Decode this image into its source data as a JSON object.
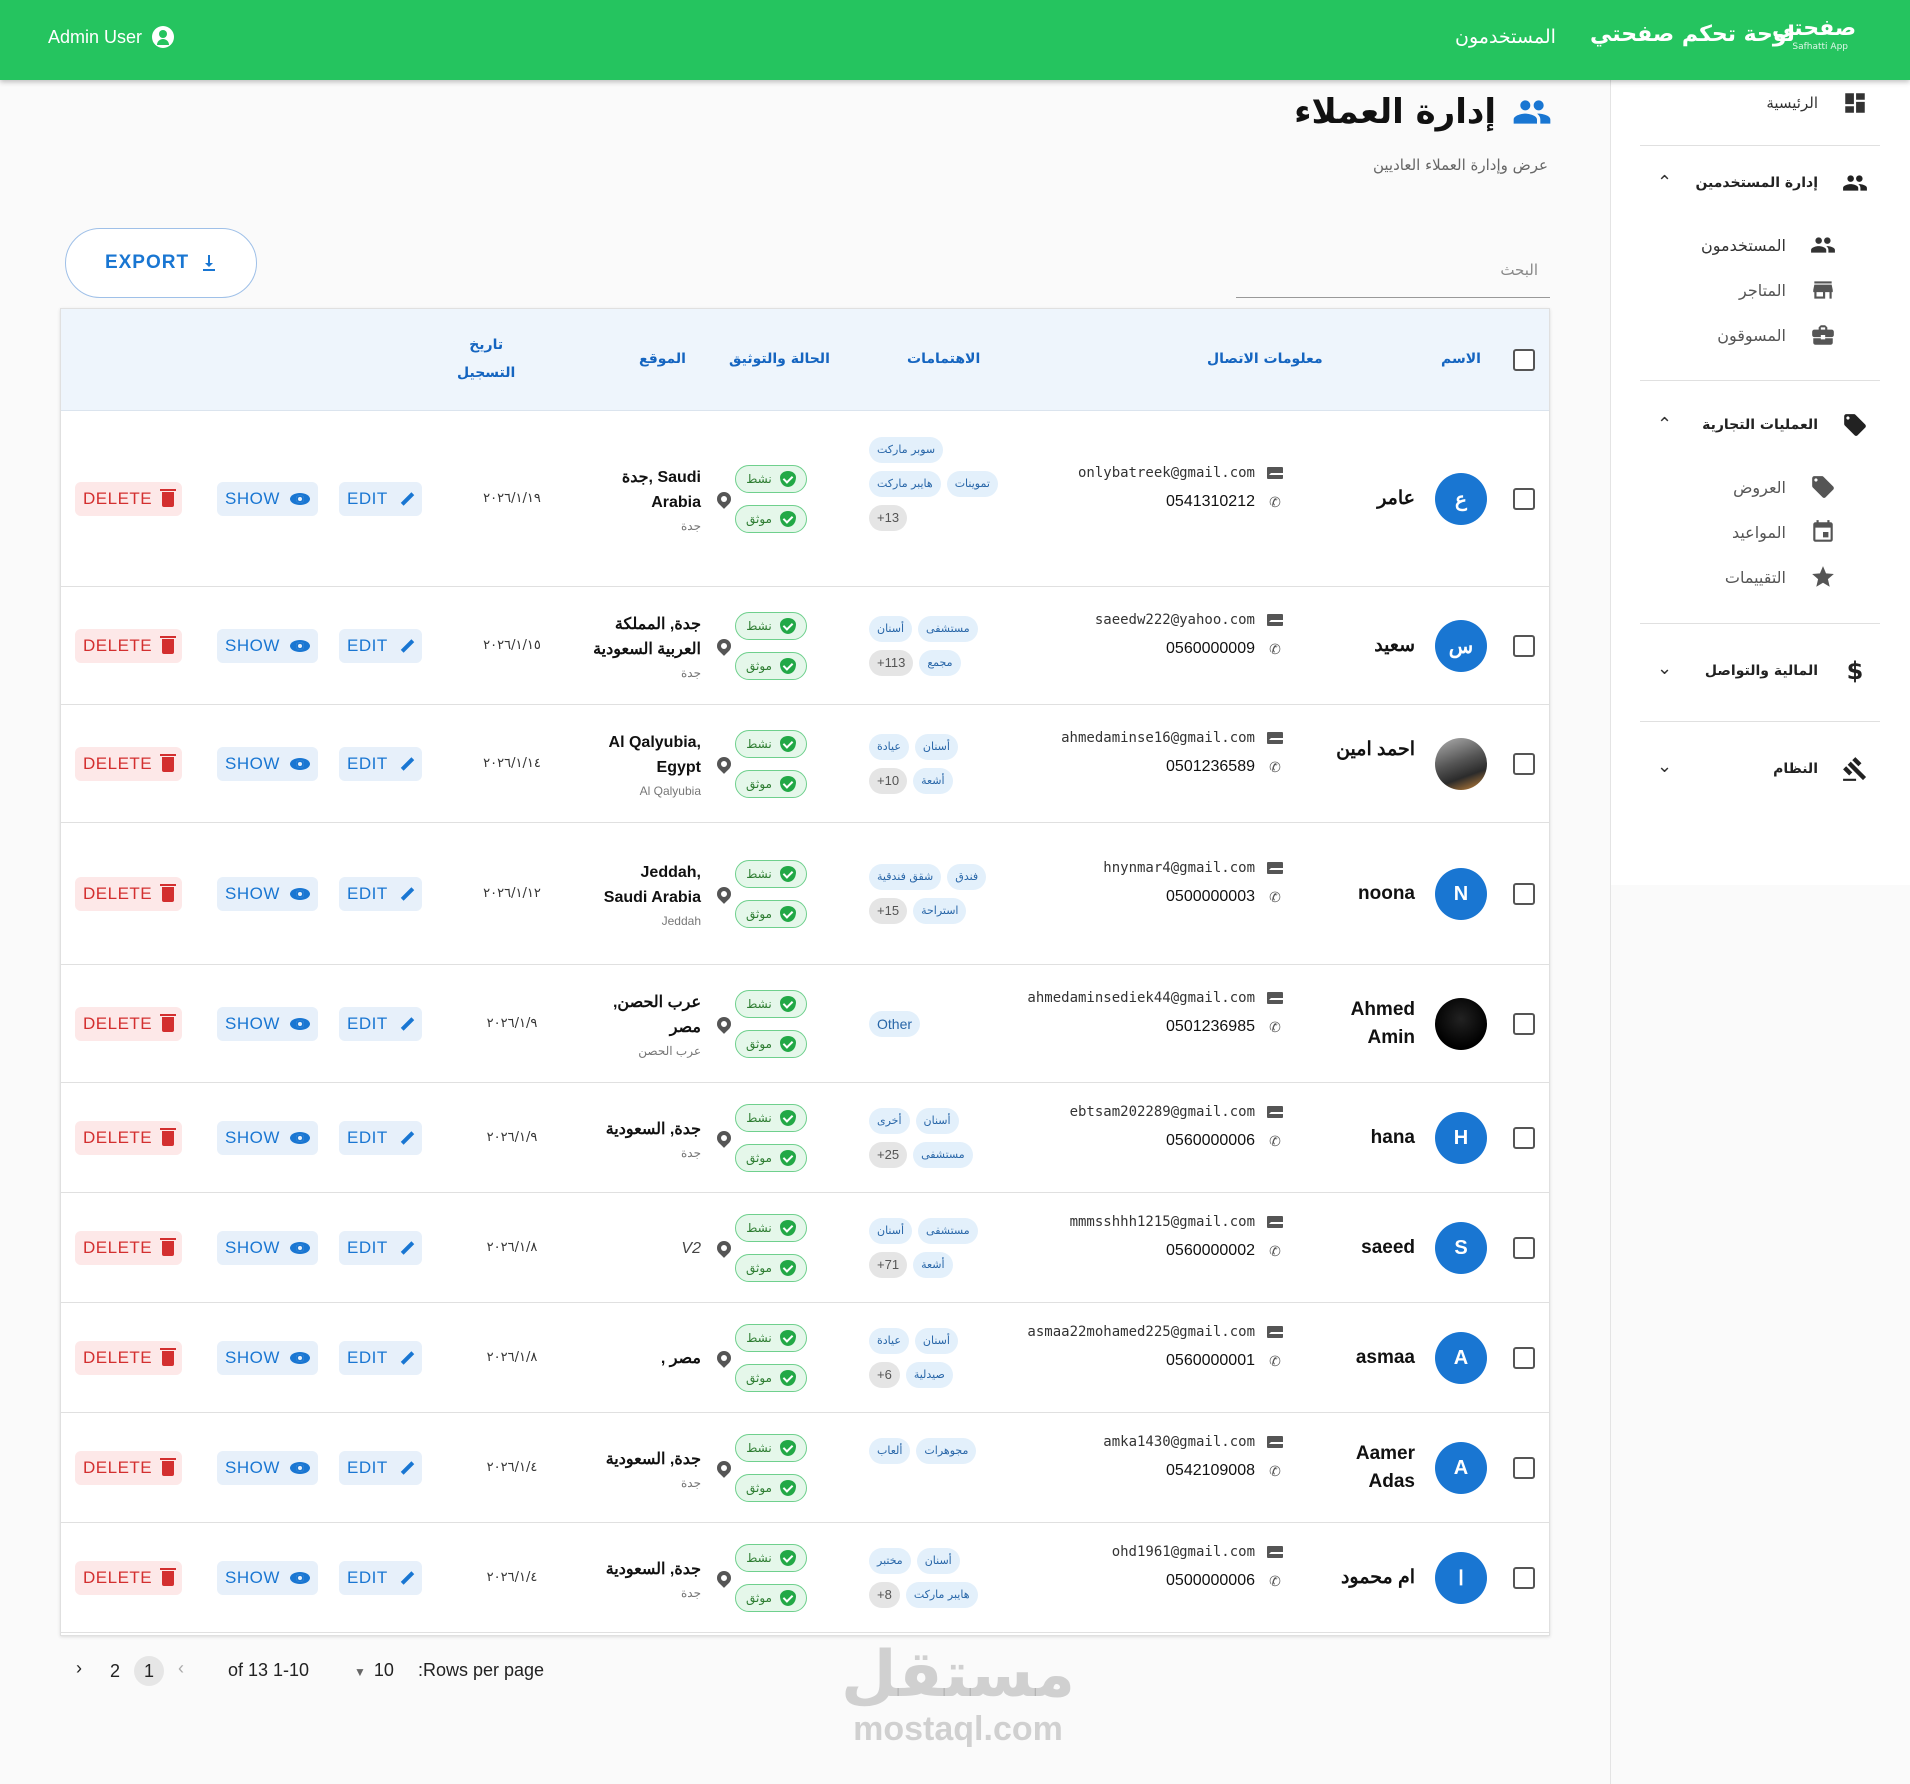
{
  "topbar": {
    "user": "Admin User",
    "nav_users": "المستخدمون",
    "dashboard_title": "لوحة تحكم صفحتي",
    "logo_ar": "صفحتي",
    "logo_en": "Safhatti App"
  },
  "sidebar": {
    "home": "الرئيسية",
    "users_group": "إدارة المستخدمين",
    "users_items": [
      "المستخدمون",
      "المتاجر",
      "المسوقون"
    ],
    "business_group": "العمليات التجارية",
    "business_items": [
      "العروض",
      "المواعيد",
      "التقييمات"
    ],
    "finance_group": "المالية والتواصل",
    "system_group": "النظام"
  },
  "header": {
    "title": "إدارة العملاء",
    "subtitle": "عرض وإدارة العملاء العاديين"
  },
  "toolbar": {
    "export_label": "EXPORT",
    "search_placeholder": "البحث"
  },
  "table": {
    "columns": {
      "name": "الاسم",
      "contact": "معلومات الاتصال",
      "interests": "الاهتمامات",
      "status": "الحالة والتوثيق",
      "location": "الموقع",
      "date_line1": "تاريخ",
      "date_line2": "التسجيل"
    },
    "status_active": "نشط",
    "status_verified": "موثق",
    "edit_label": "EDIT",
    "show_label": "SHOW",
    "delete_label": "DELETE",
    "rows": [
      {
        "avatar": "ع",
        "name": "عامر",
        "email": "onlybatreek@gmail.com",
        "phone": "0541310212",
        "interests": [
          "سوبر ماركت",
          "تموينات",
          "هايبر ماركت"
        ],
        "more": "13+",
        "loc_main": "جدة, Saudi Arabia",
        "loc_sub": "جدة",
        "date": "٢٠٢٦/١/١٩"
      },
      {
        "avatar": "س",
        "name": "سعيد",
        "email": "saeedw222@yahoo.com",
        "phone": "0560000009",
        "interests": [
          "مستشفى",
          "أسنان",
          "مجمع"
        ],
        "more": "113+",
        "loc_main": "جدة, المملكة العربية السعودية",
        "loc_sub": "جدة",
        "date": "٢٠٢٦/١/١٥"
      },
      {
        "avatar": "",
        "name": "احمد امين",
        "email": "ahmedaminse16@gmail.com",
        "phone": "0501236589",
        "interests": [
          "أسنان",
          "عيادة",
          "أشعة"
        ],
        "more": "10+",
        "loc_main": "Al Qalyubia, Egypt",
        "loc_sub": "Al Qalyubia",
        "date": "٢٠٢٦/١/١٤"
      },
      {
        "avatar": "N",
        "name": "noona",
        "email": "hnynmar4@gmail.com",
        "phone": "0500000003",
        "interests": [
          "فندق",
          "شقق فندقية",
          "استراحة"
        ],
        "more": "15+",
        "loc_main": "Jeddah, Saudi Arabia",
        "loc_sub": "Jeddah",
        "date": "٢٠٢٦/١/١٢"
      },
      {
        "avatar": "",
        "name": "Ahmed Amin",
        "email": "ahmedaminsediek44@gmail.com",
        "phone": "0501236985",
        "interests": [
          "Other"
        ],
        "more": "",
        "loc_main": "عرب الحصن, مصر",
        "loc_sub": "عرب الحصن",
        "date": "٢٠٢٦/١/٩"
      },
      {
        "avatar": "H",
        "name": "hana",
        "email": "ebtsam202289@gmail.com",
        "phone": "0560000006",
        "interests": [
          "أسنان",
          "أخرى",
          "مستشفى"
        ],
        "more": "25+",
        "loc_main": "جدة, السعودية",
        "loc_sub": "جدة",
        "date": "٢٠٢٦/١/٩"
      },
      {
        "avatar": "S",
        "name": "saeed",
        "email": "mmmsshhh1215@gmail.com",
        "phone": "0560000002",
        "interests": [
          "مستشفى",
          "أسنان",
          "أشعة"
        ],
        "more": "71+",
        "loc_main": "V2",
        "loc_sub": "",
        "date": "٢٠٢٦/١/٨"
      },
      {
        "avatar": "A",
        "name": "asmaa",
        "email": "asmaa22mohamed225@gmail.com",
        "phone": "0560000001",
        "interests": [
          "أسنان",
          "عيادة",
          "صيدلية"
        ],
        "more": "6+",
        "loc_main": ", مصر",
        "loc_sub": "",
        "date": "٢٠٢٦/١/٨"
      },
      {
        "avatar": "A",
        "name": "Aamer Adas",
        "email": "amka1430@gmail.com",
        "phone": "0542109008",
        "interests": [
          "مجوهرات",
          "ألعاب"
        ],
        "more": "",
        "loc_main": "جدة, السعودية",
        "loc_sub": "جدة",
        "date": "٢٠٢٦/١/٤"
      },
      {
        "avatar": "ا",
        "name": "ام محمود",
        "email": "ohd1961@gmail.com",
        "phone": "0500000006",
        "interests": [
          "أسنان",
          "مختبر",
          "هايبر ماركت"
        ],
        "more": "8+",
        "loc_main": "جدة, السعودية",
        "loc_sub": "جدة",
        "date": "٢٠٢٦/١/٤"
      }
    ]
  },
  "pagination": {
    "page_1": "1",
    "page_2": "2",
    "range": "of 13 1-10",
    "rows_value": "10",
    "rows_label": ":Rows per page"
  },
  "watermark": {
    "ar": "مستقل",
    "en": "mostaql.com"
  },
  "colors": {
    "primary_green": "#25c45f",
    "accent_blue": "#1976d2",
    "delete_red": "#d32f2f"
  }
}
